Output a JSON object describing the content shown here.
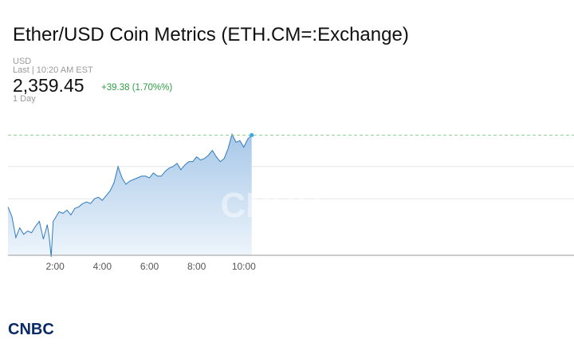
{
  "header": {
    "title": "Ether/USD Coin Metrics (ETH.CM=:Exchange)",
    "currency": "USD",
    "last_update": "Last | 10:20 AM EST",
    "price": "2,359.45",
    "change": "+39.38 (1.70%%)",
    "period": "1 Day"
  },
  "colors": {
    "line": "#2e7bbd",
    "area_top": "#a8c8e8",
    "area_bottom": "#eef5fc",
    "reference_line": "#8fd18f",
    "grid": "#e5e5e5",
    "axis": "#999999",
    "change_positive": "#2f9e44",
    "endpoint": "#39a8e8",
    "logo": "#0a2a66"
  },
  "chart_data": {
    "type": "area",
    "title": "",
    "xlabel": "",
    "ylabel": "",
    "x_ticks": [
      "2:00",
      "4:00",
      "6:00",
      "8:00",
      "10:00"
    ],
    "xlim": [
      "0:00",
      "24:00"
    ],
    "ylim": [
      2285,
      2370
    ],
    "reference_value": 2359.45,
    "grid": "horizontal",
    "legend": "none",
    "watermark": "CNBC",
    "series": [
      {
        "x": [
          "0:00",
          "0:10",
          "0:20",
          "0:30",
          "0:40",
          "0:50",
          "1:00",
          "1:10",
          "1:20",
          "1:30",
          "1:40",
          "1:45",
          "1:50",
          "1:55",
          "2:00",
          "2:10",
          "2:20",
          "2:30",
          "2:40",
          "2:50",
          "3:00",
          "3:10",
          "3:20",
          "3:30",
          "3:40",
          "3:50",
          "4:00",
          "4:10",
          "4:20",
          "4:30",
          "4:40",
          "4:50",
          "5:00",
          "5:10",
          "5:20",
          "5:30",
          "5:40",
          "5:50",
          "6:00",
          "6:10",
          "6:20",
          "6:30",
          "6:40",
          "6:50",
          "7:00",
          "7:10",
          "7:20",
          "7:30",
          "7:40",
          "7:50",
          "8:00",
          "8:10",
          "8:20",
          "8:30",
          "8:40",
          "8:50",
          "9:00",
          "9:10",
          "9:20",
          "9:30",
          "9:40",
          "9:50",
          "10:00",
          "10:10",
          "10:20"
        ],
        "values": [
          2315,
          2309,
          2296,
          2302,
          2298,
          2300,
          2299,
          2303,
          2306,
          2295,
          2304,
          2296,
          2284,
          2306,
          2308,
          2312,
          2311,
          2313,
          2310,
          2314,
          2315,
          2317,
          2318,
          2317,
          2320,
          2321,
          2319,
          2322,
          2325,
          2330,
          2340,
          2333,
          2329,
          2331,
          2332,
          2333,
          2334,
          2334,
          2333,
          2336,
          2334,
          2334,
          2337,
          2339,
          2340,
          2342,
          2338,
          2341,
          2343,
          2343,
          2346,
          2344,
          2345,
          2347,
          2350,
          2346,
          2343,
          2345,
          2351,
          2360,
          2355,
          2356,
          2352,
          2357,
          2359.45
        ]
      }
    ]
  },
  "logo": {
    "text": "CNBC"
  }
}
